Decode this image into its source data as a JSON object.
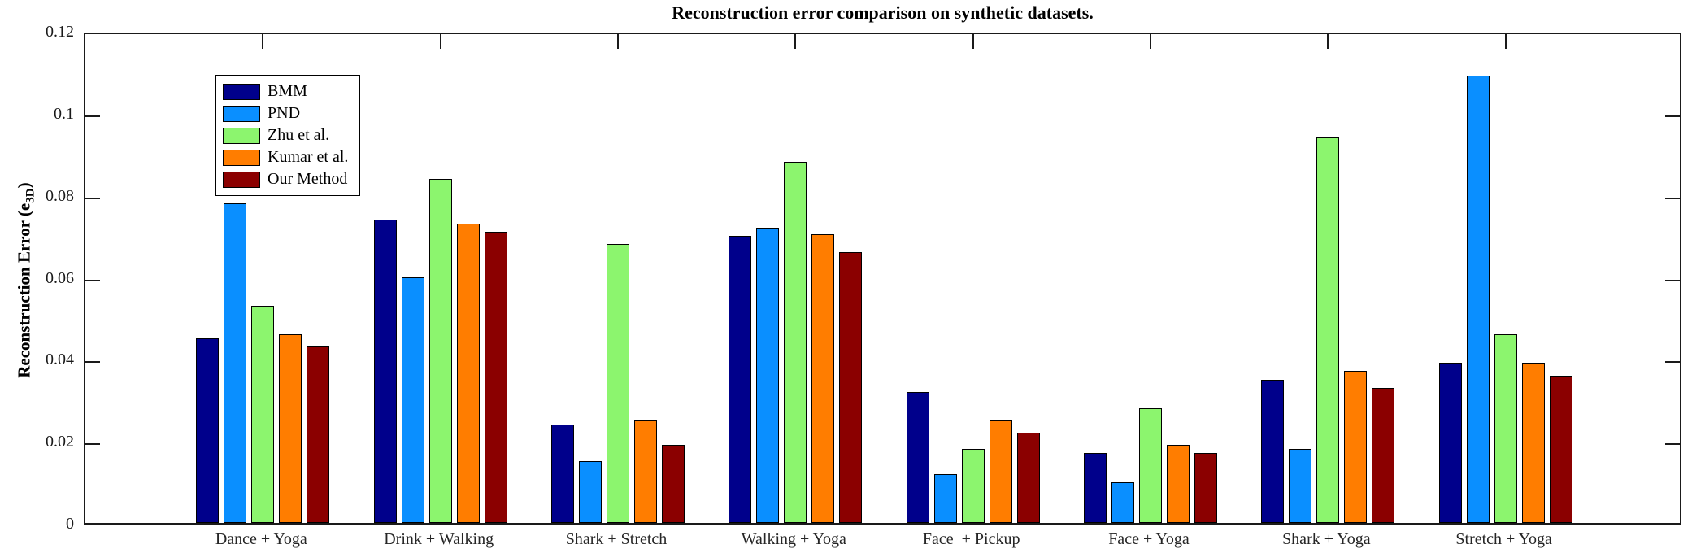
{
  "title": "Reconstruction error comparison on synthetic datasets.",
  "y_label": {
    "text": "Reconstruction Error (e",
    "sub": "3D",
    "close": ")"
  },
  "chart_data": {
    "type": "bar",
    "title": "Reconstruction error comparison on synthetic datasets.",
    "xlabel": "",
    "ylabel": "Reconstruction Error (e_3D)",
    "ylim": [
      0,
      0.12
    ],
    "ytick_labels": [
      "0",
      "0.02",
      "0.04",
      "0.06",
      "0.08",
      "0.1",
      "0.12"
    ],
    "ytick_values": [
      0,
      0.02,
      0.04,
      0.06,
      0.08,
      0.1,
      0.12
    ],
    "grid": false,
    "legend_position": "top-left",
    "categories": [
      "Dance + Yoga",
      "Drink + Walking",
      "Shark + Stretch",
      "Walking + Yoga",
      "Face  + Pickup",
      "Face + Yoga",
      "Shark + Yoga",
      "Stretch + Yoga"
    ],
    "series": [
      {
        "name": "BMM",
        "color": "#00008B",
        "values": [
          0.045,
          0.074,
          0.024,
          0.07,
          0.032,
          0.017,
          0.035,
          0.039
        ]
      },
      {
        "name": "PND",
        "color": "#0A8FFF",
        "values": [
          0.078,
          0.06,
          0.015,
          0.072,
          0.012,
          0.01,
          0.018,
          0.109
        ]
      },
      {
        "name": "Zhu et al.",
        "color": "#8CF56E",
        "values": [
          0.053,
          0.084,
          0.068,
          0.088,
          0.018,
          0.028,
          0.094,
          0.046
        ]
      },
      {
        "name": "Kumar et al.",
        "color": "#FF7D00",
        "values": [
          0.046,
          0.073,
          0.025,
          0.0705,
          0.025,
          0.019,
          0.037,
          0.039
        ]
      },
      {
        "name": "Our Method",
        "color": "#8B0000",
        "values": [
          0.043,
          0.071,
          0.019,
          0.066,
          0.022,
          0.017,
          0.033,
          0.036
        ]
      }
    ]
  }
}
